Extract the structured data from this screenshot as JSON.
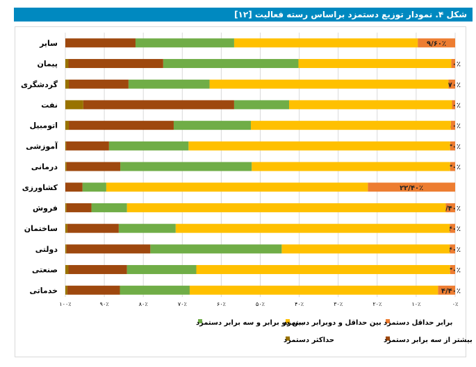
{
  "title": "شکل ۴. نمودار توزیع دستمزد براساس رسته فعالیت [۱۲]",
  "chart_data": {
    "type": "bar",
    "orientation": "horizontal-stacked-100",
    "x_reversed": true,
    "xlim": [
      0,
      100
    ],
    "grid": true,
    "legend_position": "bottom",
    "x_tick_labels": [
      "٠٪",
      "١٠٪",
      "٢٠٪",
      "٣٠٪",
      "۴٠٪",
      "۵٠٪",
      "۶٠٪",
      "٧٠٪",
      "٨٠٪",
      "٩٠٪",
      "١٠٠٪"
    ],
    "categories": [
      "سایر",
      "پیمان",
      "گردشگری",
      "نفت",
      "اتومبیل",
      "آموزشی",
      "درمانی",
      "کشاورزی",
      "فروش",
      "ساختمان",
      "دولتی",
      "صنعتی",
      "خدماتی"
    ],
    "series": [
      {
        "name": "برابر حداقل دستمزد",
        "color": "#ED7D31",
        "values": [
          9.6,
          1.0,
          1.7,
          0.8,
          1.1,
          1.3,
          1.3,
          22.4,
          2.4,
          1.4,
          1.4,
          1.3,
          4.4
        ],
        "data_labels": [
          "۹/۶۰٪",
          "۱/۰۰٪",
          "۱/۷۰٪",
          "۰/۸۰٪",
          "۱/۱۰٪",
          "۱/۳۰٪",
          "۱/۳۰٪",
          "۲۲/۴۰٪",
          "۲/۴۰٪",
          "۱/۴۰٪",
          "۱/۴۰٪",
          "۱/۳۰٪",
          "۴/۴۰٪"
        ]
      },
      {
        "name": "بین حداقل و دوبرابر دستمزد",
        "color": "#FFC000",
        "values": [
          47.1,
          39.2,
          61.3,
          41.8,
          51.3,
          67.1,
          50.9,
          67.1,
          81.8,
          70.3,
          43.1,
          65.1,
          63.7
        ]
      },
      {
        "name": "بین دو برابر و سه برابر دستمزد",
        "color": "#70AD47",
        "values": [
          25.3,
          34.7,
          20.8,
          14.1,
          19.8,
          20.4,
          33.7,
          6.1,
          9.1,
          14.6,
          33.7,
          17.8,
          17.9
        ]
      },
      {
        "name": "بیشتر از سه برابر دستمزد",
        "color": "#9E480E",
        "values": [
          18.0,
          24.3,
          15.3,
          38.7,
          26.9,
          11.0,
          13.8,
          4.4,
          6.4,
          13.2,
          21.5,
          15.0,
          13.5
        ]
      },
      {
        "name": "حداکثر دستمزد",
        "color": "#997300",
        "values": [
          0,
          0.8,
          0.9,
          4.6,
          0.9,
          0.2,
          0.3,
          0,
          0.3,
          0.5,
          0.3,
          0.8,
          0.5
        ]
      }
    ]
  }
}
